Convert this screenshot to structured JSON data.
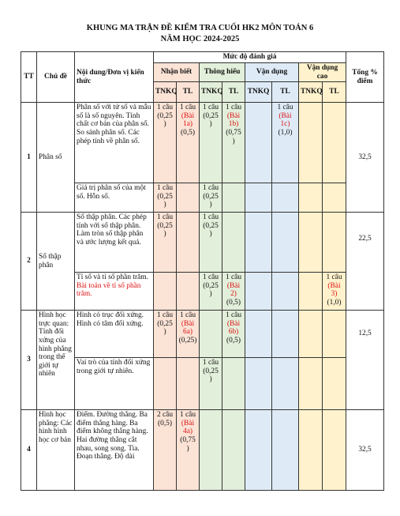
{
  "title_line1": "KHUNG MA TRẬN ĐỀ KIỂM TRA CUỐI HK2 MÔN TOÁN 6",
  "title_line2": "NĂM HỌC 2024-2025",
  "header": {
    "tt": "TT",
    "chu_de": "Chủ đề",
    "noi_dung": "Nội dung/Đơn vị kiến thức",
    "muc_do": "Mức độ đánh giá",
    "tong": "Tổng % điểm",
    "levels": [
      "Nhận biết",
      "Thông hiểu",
      "Vận dụng",
      "Vận dụng cao"
    ],
    "tnkq": "TNKQ",
    "tl": "TL"
  },
  "rows": [
    {
      "tt": "1",
      "chu_de": "Phân số",
      "tong": "32,5",
      "items": [
        {
          "noi_dung": "Phân số với tử số và mẫu số là số nguyên. Tính chất cơ bản của phân số. So sánh phân số. Các phép tính về phân số.",
          "nb_tnkq": "1 câu (0,25 )",
          "nb_tl": "1 câu",
          "nb_tl_red": "(Bài 1a)",
          "nb_tl_after": "(0,5)",
          "th_tnkq": "1 câu (0,25 )",
          "th_tl": "1 câu",
          "th_tl_red": "(Bài 1b)",
          "th_tl_after": "(0,75 )",
          "vd_tnkq": "",
          "vd_tl": "1 câu",
          "vd_tl_red": "(Bài 1c)",
          "vd_tl_after": "(1,0)",
          "vdc_tnkq": "",
          "vdc_tl": "",
          "vdc_tl_red": "",
          "vdc_tl_after": ""
        },
        {
          "noi_dung": "Giá trị phân số của một số. Hỗn số.",
          "nb_tnkq": "1 câu (0,25 )",
          "nb_tl": "",
          "nb_tl_red": "",
          "nb_tl_after": "",
          "th_tnkq": "1 câu (0,25 )",
          "th_tl": "",
          "th_tl_red": "",
          "th_tl_after": "",
          "vd_tnkq": "",
          "vd_tl": "",
          "vd_tl_red": "",
          "vd_tl_after": "",
          "vdc_tnkq": "",
          "vdc_tl": "",
          "vdc_tl_red": "",
          "vdc_tl_after": ""
        }
      ]
    },
    {
      "tt": "2",
      "chu_de": "Số thập phân",
      "tong": "22,5",
      "items": [
        {
          "noi_dung": "Số thập phân. Các phép tính với số thập phân. Làm tròn số thập phân và ước lượng kết quả.",
          "nb_tnkq": "1 câu (0,25 )",
          "nb_tl": "",
          "nb_tl_red": "",
          "nb_tl_after": "",
          "th_tnkq": "1 câu (0,25 )",
          "th_tl": "",
          "th_tl_red": "",
          "th_tl_after": "",
          "vd_tnkq": "",
          "vd_tl": "",
          "vd_tl_red": "",
          "vd_tl_after": "",
          "vdc_tnkq": "",
          "vdc_tl": "",
          "vdc_tl_red": "",
          "vdc_tl_after": ""
        },
        {
          "noi_dung": "Tỉ số và tỉ số phần trăm.",
          "noi_dung_red": "Bài toán về tỉ số phần trăm.",
          "nb_tnkq": "",
          "nb_tl": "",
          "nb_tl_red": "",
          "nb_tl_after": "",
          "th_tnkq": "1 câu (0,25 )",
          "th_tl": "1 câu",
          "th_tl_red": "(Bài 2)",
          "th_tl_after": "(0,5)",
          "vd_tnkq": "",
          "vd_tl": "",
          "vd_tl_red": "",
          "vd_tl_after": "",
          "vdc_tnkq": "",
          "vdc_tl": "1 câu",
          "vdc_tl_red": "(Bài 3)",
          "vdc_tl_after": "(1,0)"
        }
      ]
    },
    {
      "tt": "3",
      "chu_de": "Hình học trực quan: Tính đối xứng của hình phẳng trong thế giới tự nhiên",
      "tong": "12,5",
      "items": [
        {
          "noi_dung": "Hình có trục đối xứng. Hình có tâm đối xứng.",
          "nb_tnkq": "1 câu (0,25 )",
          "nb_tl": "1 câu",
          "nb_tl_red": "(Bài 6a)",
          "nb_tl_after": "(0,25)",
          "th_tnkq": "",
          "th_tl": "1 câu",
          "th_tl_red": "(Bài 6b)",
          "th_tl_after": "(0,5)",
          "vd_tnkq": "",
          "vd_tl": "",
          "vd_tl_red": "",
          "vd_tl_after": "",
          "vdc_tnkq": "",
          "vdc_tl": "",
          "vdc_tl_red": "",
          "vdc_tl_after": ""
        },
        {
          "noi_dung": "Vai trò của tính đối xứng trong giới tự nhiên.",
          "nb_tnkq": "",
          "nb_tl": "",
          "nb_tl_red": "",
          "nb_tl_after": "",
          "th_tnkq": "1 câu (0,25 )",
          "th_tl": "",
          "th_tl_red": "",
          "th_tl_after": "",
          "vd_tnkq": "",
          "vd_tl": "",
          "vd_tl_red": "",
          "vd_tl_after": "",
          "vdc_tnkq": "",
          "vdc_tl": "",
          "vdc_tl_red": "",
          "vdc_tl_after": ""
        }
      ]
    },
    {
      "tt": "4",
      "chu_de": "Hình học phẳng: Các hình hình học cơ bản",
      "tong": "32,5",
      "items": [
        {
          "noi_dung": "Điểm. Đường thẳng. Ba điểm thẳng hàng. Ba điểm không thẳng hàng. Hai đường thẳng cắt nhau, song song. Tia. Đoạn thẳng. Độ dài",
          "nb_tnkq": "2 câu (0,5)",
          "nb_tl": "1 câu",
          "nb_tl_red": "(Bài 4a)",
          "nb_tl_after": "(0,75 )",
          "th_tnkq": "",
          "th_tl": "",
          "th_tl_red": "",
          "th_tl_after": "",
          "vd_tnkq": "",
          "vd_tl": "",
          "vd_tl_red": "",
          "vd_tl_after": "",
          "vdc_tnkq": "",
          "vdc_tl": "",
          "vdc_tl_red": "",
          "vdc_tl_after": ""
        }
      ]
    }
  ]
}
